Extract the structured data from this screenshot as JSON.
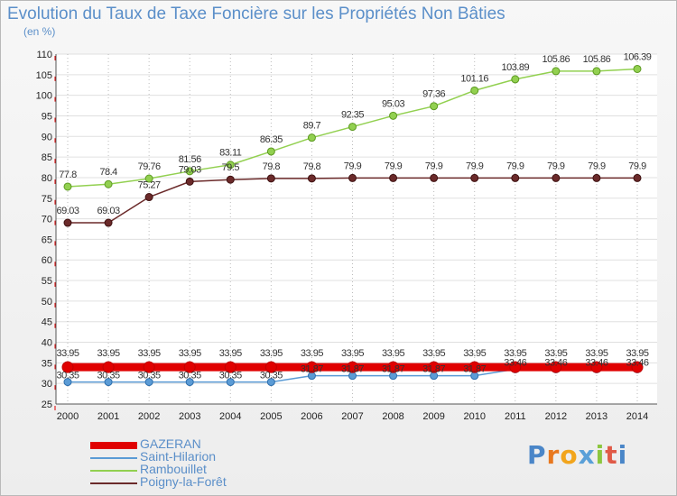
{
  "title": "Evolution du Taux de Taxe Foncière sur les Propriétés Non Bâties",
  "unit_label": "(en %)",
  "logo_text": "Proxiti",
  "colors": {
    "title": "#5b8fc9",
    "axis_text": "#222222",
    "grid_h": "#e0e0e0",
    "grid_v": "#bbbbbb",
    "gazeran": "#e00000",
    "saint_hilarion": "#5b9bd5",
    "rambouillet": "#92d050",
    "poigny": "#6b2a2a"
  },
  "chart_data": {
    "type": "line",
    "title": "Evolution du Taux de Taxe Foncière sur les Propriétés Non Bâties",
    "ylabel": "(en %)",
    "xlabel": "",
    "ylim": [
      25,
      110
    ],
    "yticks": [
      25,
      30,
      35,
      40,
      45,
      50,
      55,
      60,
      65,
      70,
      75,
      80,
      85,
      90,
      95,
      100,
      105,
      110
    ],
    "categories": [
      "2000",
      "2001",
      "2002",
      "2003",
      "2004",
      "2005",
      "2006",
      "2007",
      "2008",
      "2009",
      "2010",
      "2011",
      "2012",
      "2013",
      "2014"
    ],
    "series": [
      {
        "name": "GAZERAN",
        "key": "gazeran",
        "values": [
          33.95,
          33.95,
          33.95,
          33.95,
          33.95,
          33.95,
          33.95,
          33.95,
          33.95,
          33.95,
          33.95,
          33.95,
          33.95,
          33.95,
          33.95
        ],
        "labels": [
          "33.95",
          "33.95",
          "33.95",
          "33.95",
          "33.95",
          "33.95",
          "33.95",
          "33.95",
          "33.95",
          "33.95",
          "33.95",
          "33.95",
          "33.95",
          "33.95",
          "33.95"
        ]
      },
      {
        "name": "Saint-Hilarion",
        "key": "saint_hilarion",
        "values": [
          30.35,
          30.35,
          30.35,
          30.35,
          30.35,
          30.35,
          31.87,
          31.87,
          31.87,
          31.87,
          31.87,
          33.46,
          33.46,
          33.46,
          33.46
        ],
        "labels": [
          "30.35",
          "30.35",
          "30.35",
          "30.35",
          "30.35",
          "30.35",
          "31.87",
          "31.87",
          "31.87",
          "31.87",
          "31.87",
          "33.46",
          "33.46",
          "33.46",
          "33.46"
        ]
      },
      {
        "name": "Rambouillet",
        "key": "rambouillet",
        "values": [
          77.8,
          78.4,
          79.76,
          81.56,
          83.11,
          86.35,
          89.7,
          92.35,
          95.03,
          97.36,
          101.16,
          103.89,
          105.86,
          105.86,
          106.39
        ],
        "labels": [
          "77.8",
          "78.4",
          "79.76",
          "81.56",
          "83.11",
          "86.35",
          "89.7",
          "92.35",
          "95.03",
          "97.36",
          "101.16",
          "103.89",
          "105.86",
          "105.86",
          "106.39"
        ]
      },
      {
        "name": "Poigny-la-Forêt",
        "key": "poigny",
        "values": [
          69.03,
          69.03,
          75.27,
          79.03,
          79.5,
          79.8,
          79.8,
          79.9,
          79.9,
          79.9,
          79.9,
          79.9,
          79.9,
          79.9,
          79.9
        ],
        "labels": [
          "69.03",
          "69.03",
          "75.27",
          "79.03",
          "79.5",
          "79.8",
          "79.8",
          "79.9",
          "79.9",
          "79.9",
          "79.9",
          "79.9",
          "79.9",
          "79.9",
          "79.9"
        ]
      }
    ],
    "legend": "bottom-left",
    "grid": true
  }
}
